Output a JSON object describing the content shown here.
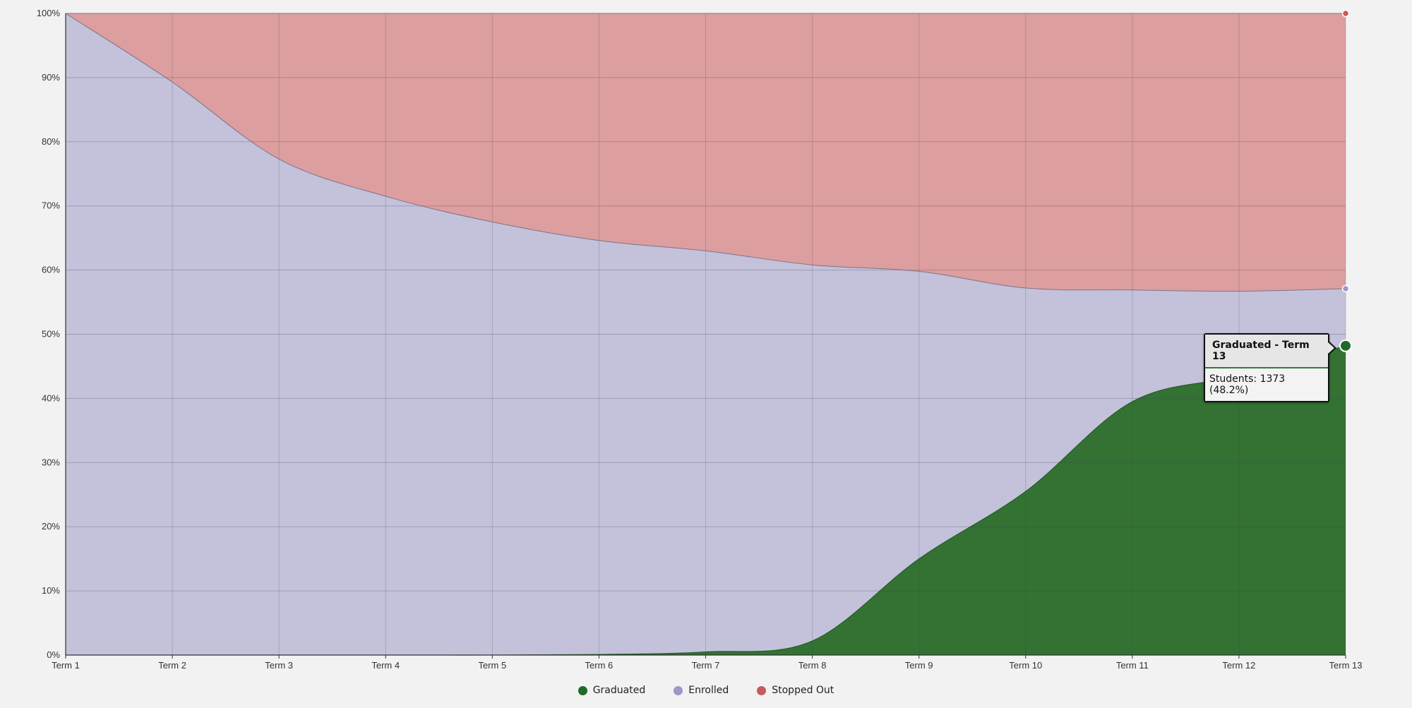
{
  "chart_data": {
    "type": "area",
    "stacked": "percent",
    "categories": [
      "Term 1",
      "Term 2",
      "Term 3",
      "Term 4",
      "Term 5",
      "Term 6",
      "Term 7",
      "Term 8",
      "Term 9",
      "Term 10",
      "Term 11",
      "Term 12",
      "Term 13"
    ],
    "yticks": [
      "0%",
      "10%",
      "20%",
      "30%",
      "40%",
      "50%",
      "60%",
      "70%",
      "80%",
      "90%",
      "100%"
    ],
    "ylim": [
      0,
      100
    ],
    "grid": true,
    "legend_position": "bottom-center",
    "series": [
      {
        "name": "Graduated",
        "color": "#1e6b26",
        "fill": "#337233",
        "values": [
          0,
          0,
          0,
          0,
          0,
          0.1,
          0.5,
          2.2,
          15,
          25.5,
          39.5,
          43.5,
          48.2
        ]
      },
      {
        "name": "Enrolled",
        "color": "#9c99c8",
        "fill": "#c4c1db",
        "values": [
          100,
          89.3,
          77.3,
          71.5,
          67.5,
          64.5,
          62.5,
          58.6,
          44.8,
          31.7,
          17.4,
          13.2,
          8.9
        ]
      },
      {
        "name": "Stopped Out",
        "color": "#c65b5b",
        "fill": "#dd9e9f",
        "values": [
          0,
          10.7,
          22.7,
          28.5,
          32.5,
          35.4,
          37.0,
          39.2,
          40.2,
          42.8,
          43.1,
          43.3,
          42.9
        ]
      }
    ],
    "tooltip": {
      "title": "Graduated - Term 13",
      "body": "Students: 1373 (48.2%)",
      "series_index": 0,
      "point_index": 12
    }
  }
}
